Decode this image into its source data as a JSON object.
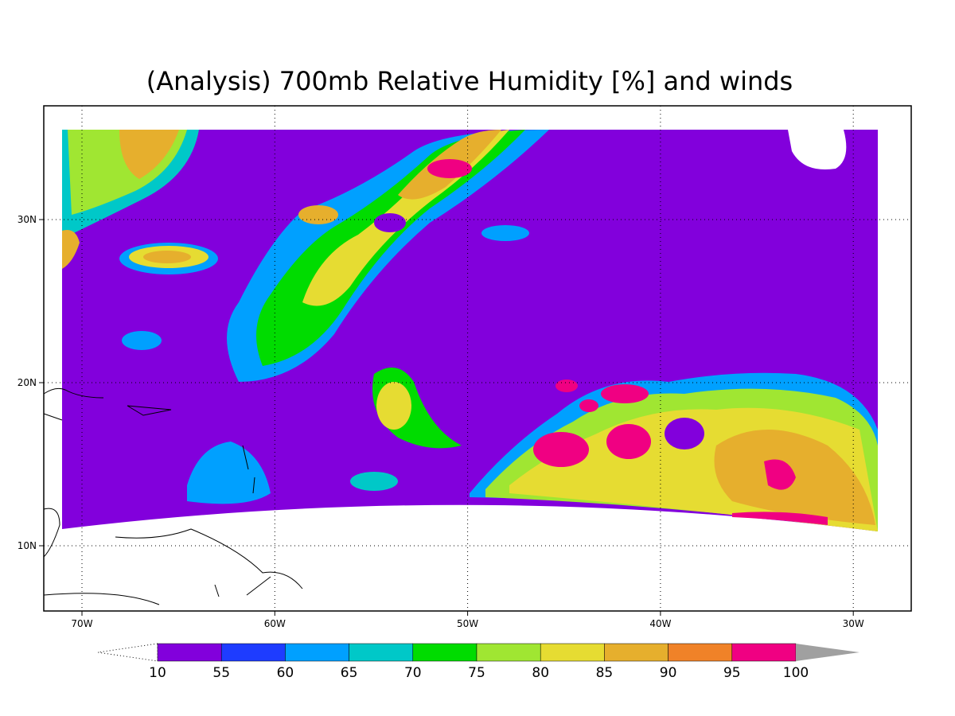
{
  "title": "(Analysis) 700mb Relative Humidity [%] and winds",
  "map": {
    "lon_ticks": [
      "70W",
      "60W",
      "50W",
      "40W",
      "30W"
    ],
    "lat_ticks": [
      "30N",
      "20N",
      "10N"
    ]
  },
  "colorbar": {
    "levels": [
      10,
      55,
      60,
      65,
      70,
      75,
      80,
      85,
      90,
      95,
      100
    ],
    "colors": [
      "#8200dc",
      "#1e3cff",
      "#00a0ff",
      "#00c8c8",
      "#00dc00",
      "#a0e632",
      "#e6dc32",
      "#e6af2d",
      "#f08228",
      "#f00082"
    ],
    "over_color": "#a0a0a0"
  }
}
